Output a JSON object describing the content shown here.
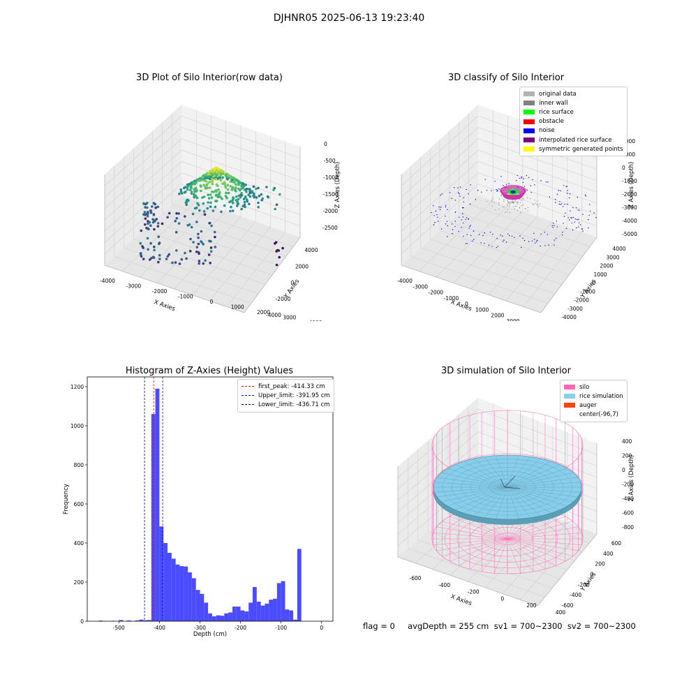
{
  "suptitle": "DJHNR05 2025-06-13 19:23:40",
  "status_line": "flag = 0     avgDepth = 255 cm  sv1 = 700~2300  sv2 = 700~2300",
  "chart_data": [
    {
      "type": "scatter",
      "subtype": "3d",
      "title": "3D Plot of Silo Interior(row data)",
      "xlabel": "X Axies",
      "ylabel": "Y Axies",
      "zlabel": "Z Axies (Depth)",
      "x_ticks": [
        "-4000",
        "-3000",
        "-2000",
        "-1000",
        "0",
        "1000",
        "2000",
        "3000",
        "4000"
      ],
      "y_ticks": [
        "-4000",
        "-2000",
        "0",
        "2000",
        "4000"
      ],
      "z_ticks": [
        "0",
        "-500",
        "-1000",
        "-1500",
        "-2000",
        "-2500"
      ],
      "colormap": "viridis",
      "peak": {
        "x": 200,
        "y": 500,
        "z": -300
      }
    },
    {
      "type": "scatter",
      "subtype": "3d",
      "title": "3D classify of Silo Interior",
      "xlabel": "X Axies",
      "ylabel": "Y Axies",
      "zlabel": "Z Axies (Depth)",
      "x_ticks": [
        "-4000",
        "-3000",
        "-2000",
        "-1000",
        "0",
        "1000",
        "2000",
        "3000"
      ],
      "y_ticks": [
        "-4000",
        "-3000",
        "-2000",
        "-1000",
        "0",
        "1000",
        "2000",
        "3000",
        "4000"
      ],
      "z_ticks": [
        "2000",
        "1000",
        "0",
        "-1000",
        "-2000",
        "-3000",
        "-4000",
        "-5000"
      ],
      "legend_position": "top-right",
      "legend": [
        {
          "label": "original data",
          "color": "#b3b3b3"
        },
        {
          "label": "inner wall",
          "color": "#808080"
        },
        {
          "label": "rice surface",
          "color": "#00ff00"
        },
        {
          "label": "obstacle",
          "color": "#ff0000"
        },
        {
          "label": "noise",
          "color": "#0000ff"
        },
        {
          "label": "interpolated rice surface",
          "color": "#800080"
        },
        {
          "label": "symmetric generated points",
          "color": "#ffff00"
        }
      ]
    },
    {
      "type": "bar",
      "subtype": "histogram",
      "title": "Histogram of Z-Axies (Height) Values",
      "xlabel": "Depth (cm)",
      "ylabel": "Frequency",
      "xlim": [
        -578,
        28
      ],
      "ylim": [
        0,
        1250
      ],
      "x_ticks": [
        -500,
        -400,
        -300,
        -200,
        -100,
        0
      ],
      "y_ticks": [
        0,
        200,
        400,
        600,
        800,
        1000,
        1200
      ],
      "bar_color": "#4b4bff",
      "bin_width": 10,
      "bin_left_edges": [
        -560,
        -550,
        -540,
        -530,
        -520,
        -510,
        -500,
        -490,
        -480,
        -470,
        -460,
        -450,
        -440,
        -430,
        -420,
        -410,
        -400,
        -390,
        -380,
        -370,
        -360,
        -350,
        -340,
        -330,
        -320,
        -310,
        -300,
        -290,
        -280,
        -270,
        -260,
        -250,
        -240,
        -230,
        -220,
        -210,
        -200,
        -190,
        -180,
        -170,
        -160,
        -150,
        -140,
        -130,
        -120,
        -110,
        -100,
        -90,
        -80,
        -70,
        -60,
        -50,
        -40,
        -30,
        -20,
        -10,
        0
      ],
      "values": [
        0,
        3,
        0,
        0,
        2,
        0,
        6,
        0,
        4,
        0,
        4,
        8,
        5,
        6,
        1060,
        1190,
        485,
        400,
        350,
        320,
        290,
        282,
        280,
        250,
        220,
        160,
        140,
        95,
        40,
        25,
        30,
        28,
        40,
        45,
        75,
        75,
        55,
        50,
        95,
        175,
        100,
        80,
        90,
        110,
        115,
        195,
        205,
        60,
        55,
        8,
        370,
        0,
        0,
        0,
        0,
        0,
        0
      ],
      "reference_lines": [
        {
          "label": "first_peak: -414.33 cm",
          "value": -414.33,
          "color": "#ff0000"
        },
        {
          "label": "Upper_limit: -391.95 cm",
          "value": -391.95,
          "color": "#0000ff"
        },
        {
          "label": "Lower_limit: -436.71 cm",
          "value": -436.71,
          "color": "#00008b"
        }
      ],
      "legend_position": "top-right"
    },
    {
      "type": "surface",
      "subtype": "3d",
      "title": "3D simulation of Silo Interior",
      "xlabel": "X Axies",
      "ylabel": "Y Axies",
      "zlabel": "Z Axies (Depth)",
      "x_ticks": [
        "-600",
        "-400",
        "-200",
        "0",
        "200",
        "400"
      ],
      "y_ticks": [
        "-600",
        "-400",
        "-200",
        "0",
        "200",
        "400",
        "600"
      ],
      "z_ticks": [
        "400",
        "200",
        "0",
        "-200",
        "-400",
        "-600",
        "-800"
      ],
      "legend_position": "top-right",
      "legend": [
        {
          "label": "silo",
          "color": "#ff69b4"
        },
        {
          "label": "rice simulation",
          "color": "#87ceeb"
        },
        {
          "label": "auger",
          "color": "#ff4500"
        },
        {
          "label": "center(-96,7)",
          "color": ""
        }
      ]
    }
  ]
}
